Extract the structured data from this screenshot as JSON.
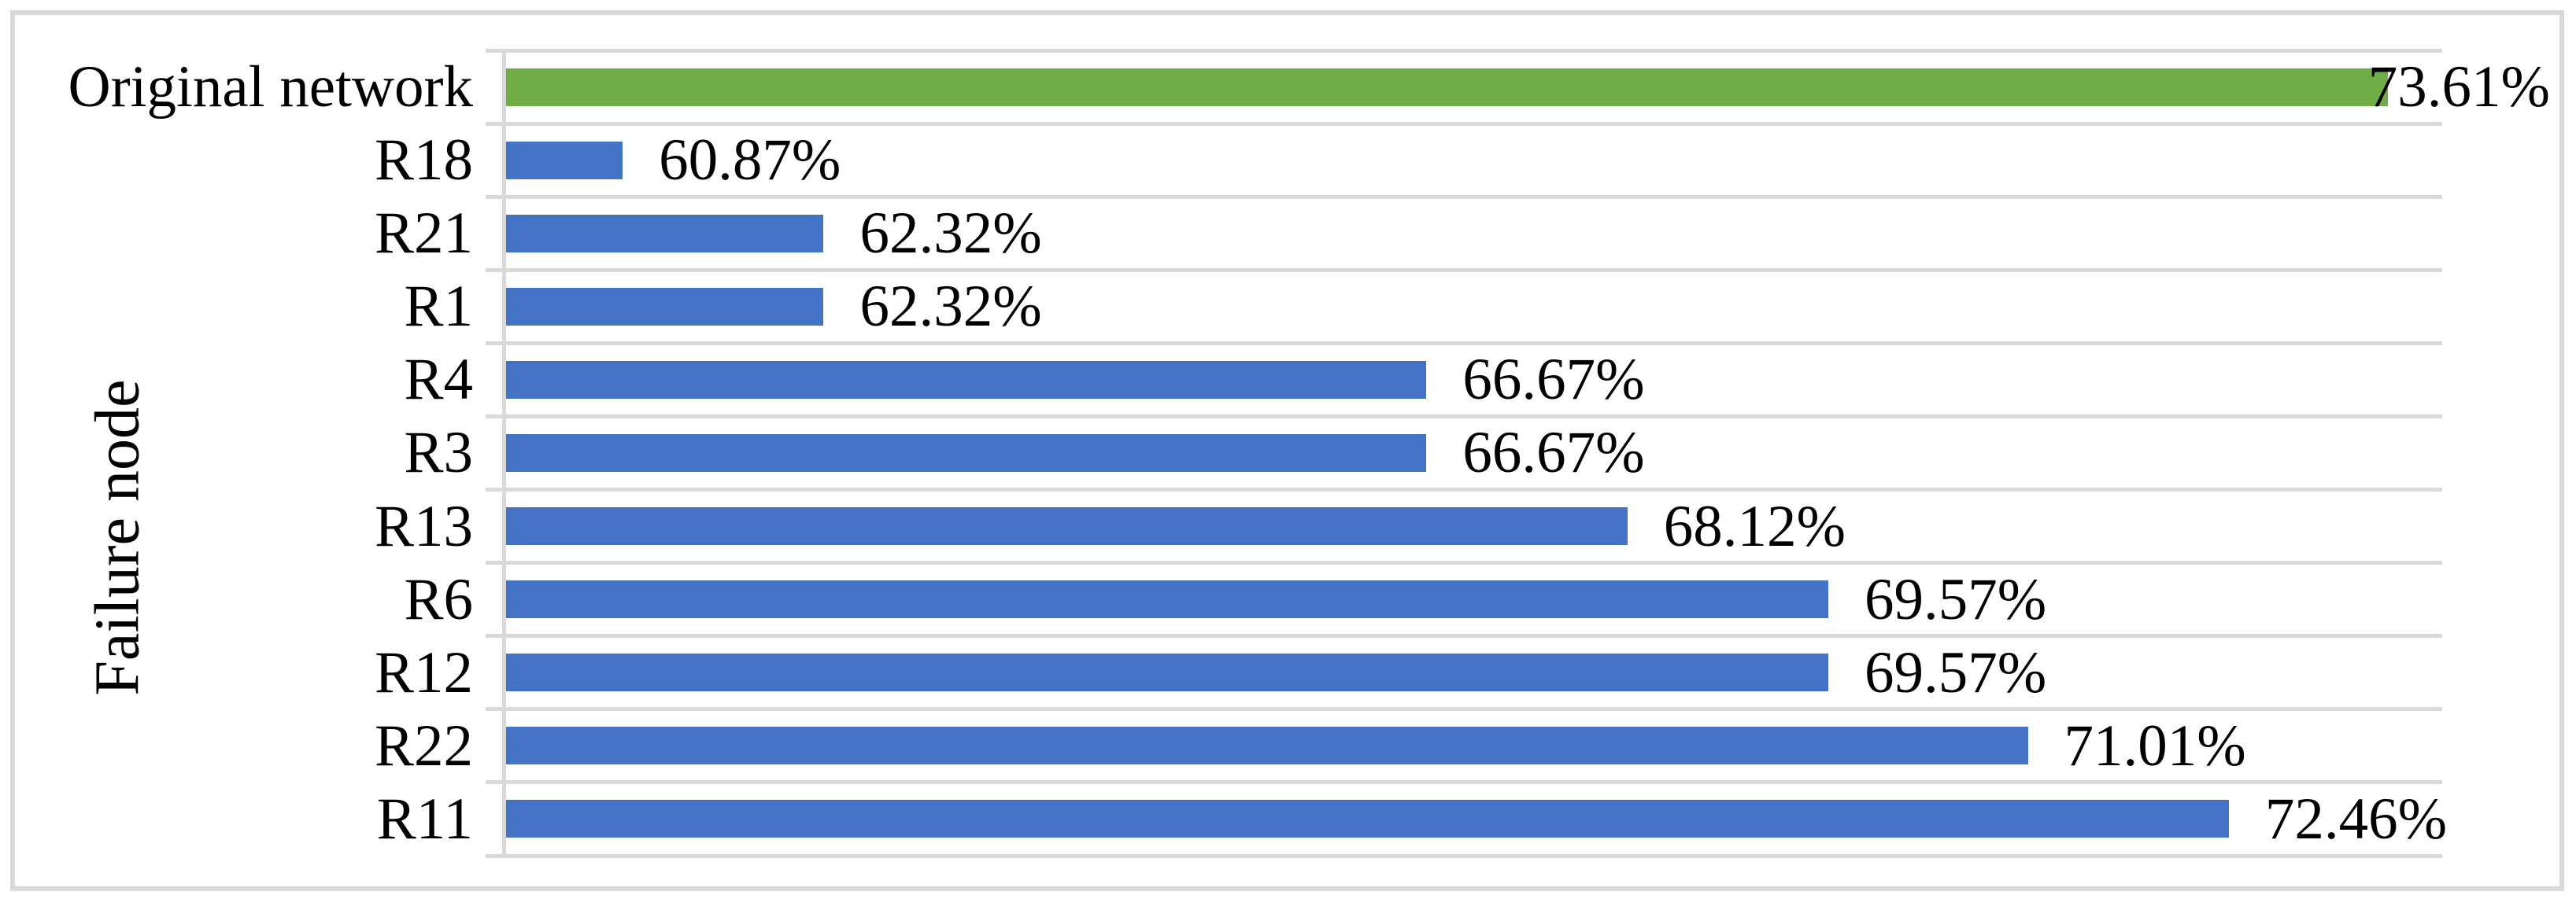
{
  "chart_data": {
    "type": "bar",
    "orientation": "horizontal",
    "title": "",
    "xlabel": "",
    "ylabel": "Failure node",
    "categories": [
      "Original network",
      "R18",
      "R21",
      "R1",
      "R4",
      "R3",
      "R13",
      "R6",
      "R12",
      "R22",
      "R11"
    ],
    "values": [
      73.61,
      60.87,
      62.32,
      62.32,
      66.67,
      66.67,
      68.12,
      69.57,
      69.57,
      71.01,
      72.46
    ],
    "data_labels": [
      "73.61%",
      "60.87%",
      "62.32%",
      "62.32%",
      "66.67%",
      "66.67%",
      "68.12%",
      "69.57%",
      "69.57%",
      "71.01%",
      "72.46%"
    ],
    "bar_colors": [
      "#70AD47",
      "#4472C4",
      "#4472C4",
      "#4472C4",
      "#4472C4",
      "#4472C4",
      "#4472C4",
      "#4472C4",
      "#4472C4",
      "#4472C4",
      "#4472C4"
    ],
    "axis": {
      "min": 60,
      "max": 74,
      "tick_labels_visible": false
    },
    "legend": "none",
    "grid": "category-gridlines-on",
    "colors": {
      "highlight_bar": "#70AD47",
      "default_bar": "#4472C4",
      "gridline": "#D9D9D9",
      "frame_border": "#D9D9D9",
      "label_text": "#000000",
      "background": "#FFFFFF"
    }
  }
}
